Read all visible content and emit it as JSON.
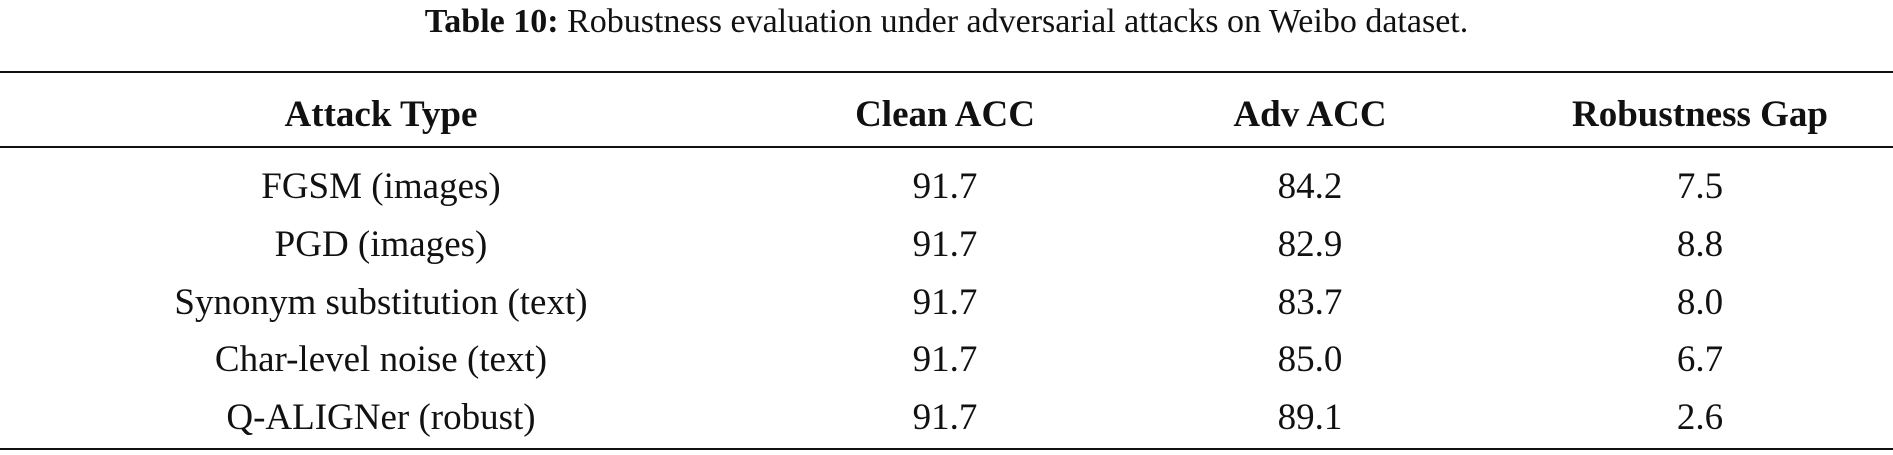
{
  "caption": {
    "label": "Table 10:",
    "text": "Robustness evaluation under adversarial attacks on Weibo dataset."
  },
  "table": {
    "header": [
      "Attack Type",
      "Clean ACC",
      "Adv ACC",
      "Robustness Gap"
    ],
    "rows": [
      [
        "FGSM (images)",
        "91.7",
        "84.2",
        "7.5"
      ],
      [
        "PGD (images)",
        "91.7",
        "82.9",
        "8.8"
      ],
      [
        "Synonym substitution (text)",
        "91.7",
        "83.7",
        "8.0"
      ],
      [
        "Char-level noise (text)",
        "91.7",
        "85.0",
        "6.7"
      ],
      [
        "Q-ALIGNer (robust)",
        "91.7",
        "89.1",
        "2.6"
      ]
    ]
  }
}
